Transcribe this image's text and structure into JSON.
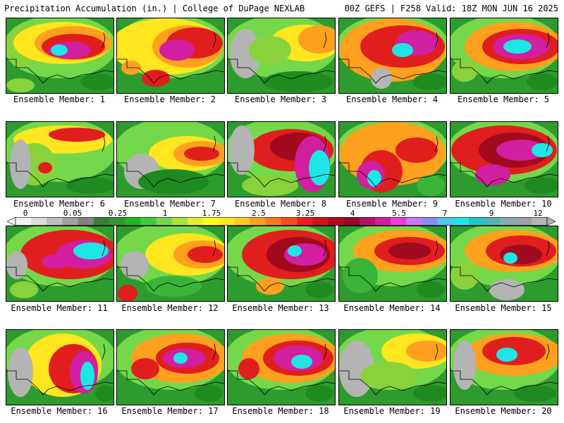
{
  "header": {
    "left": "Precipitation Accumulation (in.) | College of DuPage NEXLAB",
    "right": "00Z GEFS | F258 Valid: 18Z MON JUN 16 2025"
  },
  "colorbar": {
    "labels": [
      "0",
      "0.05",
      "0.25",
      "1",
      "1.75",
      "2.5",
      "3.25",
      "4",
      "5.5",
      "7",
      "9",
      "12"
    ],
    "colors": [
      "#f2f2f2",
      "#dcdcdc",
      "#bebebe",
      "#a0a0a0",
      "#828282",
      "#3a7f3a",
      "#2e9b2e",
      "#1fb81f",
      "#3ccc3c",
      "#74d84a",
      "#a8e43c",
      "#e6f02a",
      "#ffff1e",
      "#ffe61e",
      "#ffc81e",
      "#ffa01e",
      "#ff781e",
      "#ff4b1e",
      "#f01e1e",
      "#d21414",
      "#b40a14",
      "#960a28",
      "#b4146e",
      "#d21ea0",
      "#f03cd2",
      "#c878f0",
      "#8c8cf5",
      "#50c8f0",
      "#1ee6e6",
      "#1ec8c8",
      "#50b4b4",
      "#8caab4",
      "#a0a0aa",
      "#b4b4b4"
    ]
  },
  "panels": [
    {
      "label": "Ensemble Member: 1"
    },
    {
      "label": "Ensemble Member: 2"
    },
    {
      "label": "Ensemble Member: 3"
    },
    {
      "label": "Ensemble Member: 4"
    },
    {
      "label": "Ensemble Member: 5"
    },
    {
      "label": "Ensemble Member: 6"
    },
    {
      "label": "Ensemble Member: 7"
    },
    {
      "label": "Ensemble Member: 8"
    },
    {
      "label": "Ensemble Member: 9"
    },
    {
      "label": "Ensemble Member: 10"
    },
    {
      "label": "Ensemble Member: 11"
    },
    {
      "label": "Ensemble Member: 12"
    },
    {
      "label": "Ensemble Member: 13"
    },
    {
      "label": "Ensemble Member: 14"
    },
    {
      "label": "Ensemble Member: 15"
    },
    {
      "label": "Ensemble Member: 16"
    },
    {
      "label": "Ensemble Member: 17"
    },
    {
      "label": "Ensemble Member: 18"
    },
    {
      "label": "Ensemble Member: 19"
    },
    {
      "label": "Ensemble Member: 20"
    }
  ]
}
